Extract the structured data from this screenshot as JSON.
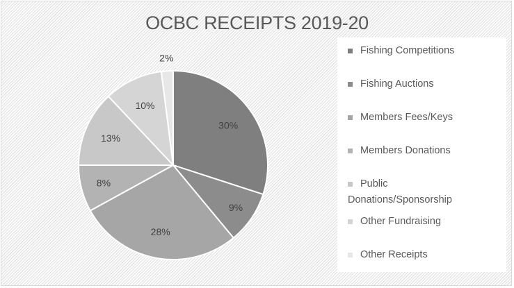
{
  "chart_data": {
    "type": "pie",
    "title": "OCBC RECEIPTS 2019-20",
    "legend_position": "right",
    "slices": [
      {
        "name": "Fishing Competitions",
        "value": 30,
        "label": "30%",
        "color": "#7f7f7f"
      },
      {
        "name": "Fishing Auctions",
        "value": 9,
        "label": "9%",
        "color": "#8c8c8c"
      },
      {
        "name": "Members Fees/Keys",
        "value": 28,
        "label": "28%",
        "color": "#a6a6a6"
      },
      {
        "name": "Members Donations",
        "value": 8,
        "label": "8%",
        "color": "#b3b3b3"
      },
      {
        "name": "Public Donations/Sponsorship",
        "value": 13,
        "label": "13%",
        "color": "#c8c8c8"
      },
      {
        "name": "Other Fundraising",
        "value": 10,
        "label": "10%",
        "color": "#d5d5d5"
      },
      {
        "name": "Other Receipts",
        "value": 2,
        "label": "2%",
        "color": "#e7e7e7"
      }
    ]
  }
}
